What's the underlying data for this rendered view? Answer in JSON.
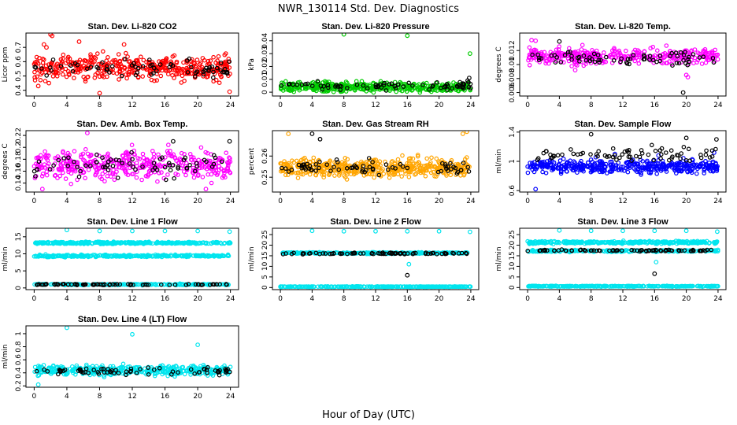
{
  "figure": {
    "title": "NWR_130114  Std. Dev. Diagnostics",
    "xlabel": "Hour of Day (UTC)"
  },
  "chart_data": [
    {
      "type": "scatter",
      "title": "Stan. Dev. Li-820 CO2",
      "ylabel": "Licor ppm",
      "xlim": [
        -1,
        25
      ],
      "ylim": [
        0.36,
        0.8
      ],
      "xticks": [
        0,
        4,
        8,
        12,
        16,
        20,
        24
      ],
      "yticks": [
        0.4,
        0.5,
        0.6,
        0.7
      ],
      "series": [
        {
          "color": "#ff0000",
          "band": {
            "center": 0.56,
            "spread": 0.07,
            "n": 420
          },
          "x": [
            0.5,
            1.5,
            2.0,
            2.2,
            1.2,
            5.5,
            8.0,
            11.0,
            23.9,
            1.8
          ],
          "y": [
            0.43,
            0.7,
            0.79,
            0.78,
            0.72,
            0.74,
            0.38,
            0.72,
            0.39,
            0.45
          ]
        },
        {
          "color": "#000000",
          "band": {
            "center": 0.55,
            "spread": 0.05,
            "n": 70
          },
          "x": [],
          "y": []
        }
      ]
    },
    {
      "type": "scatter",
      "title": "Stan. Dev. Li-820 Pressure",
      "ylabel": "kPa",
      "xlim": [
        -1,
        25
      ],
      "ylim": [
        -0.003,
        0.046
      ],
      "xticks": [
        0,
        4,
        8,
        12,
        16,
        20,
        24
      ],
      "yticks": [
        0.0,
        0.01,
        0.02,
        0.03,
        0.04
      ],
      "series": [
        {
          "color": "#00cc00",
          "band": {
            "center": 0.004,
            "spread": 0.003,
            "n": 420
          },
          "x": [
            8.0,
            16.0,
            23.9
          ],
          "y": [
            0.045,
            0.044,
            0.03
          ]
        },
        {
          "color": "#000000",
          "band": {
            "center": 0.005,
            "spread": 0.003,
            "n": 70
          },
          "x": [
            23.8,
            23.6
          ],
          "y": [
            0.011,
            0.009
          ]
        }
      ]
    },
    {
      "type": "scatter",
      "title": "Stan. Dev. Li-820 Temp.",
      "ylabel": "degrees C",
      "xlim": [
        -1,
        25
      ],
      "ylim": [
        0.0055,
        0.0145
      ],
      "xticks": [
        0,
        4,
        8,
        12,
        16,
        20,
        24
      ],
      "yticks": [
        0.006,
        0.008,
        0.01,
        0.012
      ],
      "series": [
        {
          "color": "#ff00ff",
          "band": {
            "center": 0.0112,
            "spread": 0.0009,
            "n": 360
          },
          "x": [
            20.0,
            20.2,
            6.0,
            0.5,
            1.0
          ],
          "y": [
            0.0085,
            0.0082,
            0.0092,
            0.0135,
            0.0134
          ]
        },
        {
          "color": "#000000",
          "band": {
            "center": 0.011,
            "spread": 0.0008,
            "n": 70
          },
          "x": [
            19.6,
            4.0
          ],
          "y": [
            0.006,
            0.0133
          ]
        }
      ]
    },
    {
      "type": "scatter",
      "title": "Stan. Dev. Amb. Box Temp.",
      "ylabel": "degrees C",
      "xlim": [
        -1,
        25
      ],
      "ylim": [
        0.125,
        0.228
      ],
      "xticks": [
        0,
        4,
        8,
        12,
        16,
        20,
        24
      ],
      "yticks": [
        0.14,
        0.16,
        0.18,
        0.2,
        0.22
      ],
      "series": [
        {
          "color": "#ff00ff",
          "band": {
            "center": 0.17,
            "spread": 0.02,
            "n": 420
          },
          "x": [
            6.5,
            21.0,
            1.0
          ],
          "y": [
            0.224,
            0.13,
            0.13
          ]
        },
        {
          "color": "#000000",
          "band": {
            "center": 0.17,
            "spread": 0.016,
            "n": 70
          },
          "x": [
            23.9,
            17.0
          ],
          "y": [
            0.21,
            0.21
          ]
        }
      ]
    },
    {
      "type": "scatter",
      "title": "Stan. Dev. Gas Stream RH",
      "ylabel": "percent",
      "xlim": [
        -1,
        25
      ],
      "ylim": [
        0.243,
        0.272
      ],
      "xticks": [
        0,
        4,
        8,
        12,
        16,
        20,
        24
      ],
      "yticks": [
        0.25,
        0.26
      ],
      "series": [
        {
          "color": "#ffa500",
          "band": {
            "center": 0.2545,
            "spread": 0.0035,
            "n": 480
          },
          "x": [
            23.5,
            23.0,
            1.0
          ],
          "y": [
            0.2715,
            0.2705,
            0.2705
          ]
        },
        {
          "color": "#000000",
          "band": {
            "center": 0.2545,
            "spread": 0.003,
            "n": 70
          },
          "x": [
            4.0,
            5.0
          ],
          "y": [
            0.2705,
            0.268
          ]
        }
      ]
    },
    {
      "type": "scatter",
      "title": "Stan. Dev. Sample Flow",
      "ylabel": "ml/min",
      "xlim": [
        -1,
        25
      ],
      "ylim": [
        0.58,
        1.42
      ],
      "xticks": [
        0,
        4,
        8,
        12,
        16,
        20,
        24
      ],
      "yticks": [
        0.6,
        1.0,
        1.4
      ],
      "series": [
        {
          "color": "#0000ff",
          "band": {
            "center": 0.93,
            "spread": 0.07,
            "n": 420
          },
          "x": [
            1.0,
            23.5,
            11.0,
            16.5
          ],
          "y": [
            0.62,
            1.12,
            1.1,
            1.08
          ]
        },
        {
          "color": "#000000",
          "band": {
            "center": 1.1,
            "spread": 0.09,
            "n": 70
          },
          "x": [
            8.0,
            20.0,
            23.8
          ],
          "y": [
            1.37,
            1.32,
            1.3
          ]
        }
      ]
    },
    {
      "type": "scatter",
      "title": "Stan. Dev. Line 1 Flow",
      "ylabel": "ml/min",
      "xlim": [
        -1,
        25
      ],
      "ylim": [
        -0.5,
        17.5
      ],
      "xticks": [
        0,
        4,
        8,
        12,
        16,
        20,
        24
      ],
      "yticks": [
        0,
        5,
        10,
        15
      ],
      "series": [
        {
          "color": "#00e5ee",
          "band": {
            "center": 13.2,
            "spread": 0.25,
            "n": 300
          },
          "x": [
            4.0,
            8.0,
            12.0,
            16.0,
            20.0,
            23.9
          ],
          "y": [
            17.0,
            16.7,
            16.7,
            16.7,
            16.7,
            16.5
          ]
        },
        {
          "color": "#00e5ee",
          "band": {
            "center": 9.4,
            "spread": 0.25,
            "n": 300
          },
          "x": [],
          "y": []
        },
        {
          "color": "#00e5ee",
          "band": {
            "center": 1.0,
            "spread": 0.15,
            "n": 200
          },
          "x": [],
          "y": []
        },
        {
          "color": "#000000",
          "band": {
            "center": 1.0,
            "spread": 0.12,
            "n": 75
          },
          "x": [],
          "y": []
        }
      ]
    },
    {
      "type": "scatter",
      "title": "Stan. Dev. Line 2 Flow",
      "ylabel": "ml/min",
      "xlim": [
        -1,
        25
      ],
      "ylim": [
        -1,
        28
      ],
      "xticks": [
        0,
        4,
        8,
        12,
        16,
        20,
        24
      ],
      "yticks": [
        0,
        5,
        10,
        15,
        20,
        25
      ],
      "series": [
        {
          "color": "#00e5ee",
          "band": {
            "center": 16.3,
            "spread": 0.3,
            "n": 300
          },
          "x": [
            4.0,
            8.0,
            12.0,
            16.0,
            20.0,
            23.9,
            16.2
          ],
          "y": [
            26.8,
            26.6,
            26.6,
            26.6,
            26.6,
            26.3,
            11.0
          ]
        },
        {
          "color": "#00e5ee",
          "band": {
            "center": 0.4,
            "spread": 0.1,
            "n": 300
          },
          "x": [],
          "y": []
        },
        {
          "color": "#000000",
          "band": {
            "center": 16.1,
            "spread": 0.3,
            "n": 75
          },
          "x": [
            16.0
          ],
          "y": [
            5.8
          ]
        }
      ]
    },
    {
      "type": "scatter",
      "title": "Stan. Dev. Line 3 Flow",
      "ylabel": "ml/min",
      "xlim": [
        -1,
        25
      ],
      "ylim": [
        -1,
        28
      ],
      "xticks": [
        0,
        4,
        8,
        12,
        16,
        20,
        24
      ],
      "yticks": [
        0,
        5,
        10,
        15,
        20,
        25
      ],
      "series": [
        {
          "color": "#00e5ee",
          "band": {
            "center": 21.3,
            "spread": 0.5,
            "n": 320
          },
          "x": [
            4.0,
            8.0,
            12.0,
            16.0,
            20.0,
            23.9
          ],
          "y": [
            27.0,
            26.8,
            26.8,
            26.8,
            26.8,
            26.4
          ]
        },
        {
          "color": "#00e5ee",
          "band": {
            "center": 17.3,
            "spread": 0.4,
            "n": 200
          },
          "x": [
            16.2
          ],
          "y": [
            12.0
          ]
        },
        {
          "color": "#00e5ee",
          "band": {
            "center": 0.6,
            "spread": 0.15,
            "n": 300
          },
          "x": [],
          "y": []
        },
        {
          "color": "#000000",
          "band": {
            "center": 17.5,
            "spread": 0.3,
            "n": 75
          },
          "x": [
            16.0
          ],
          "y": [
            6.5
          ]
        }
      ]
    },
    {
      "type": "scatter",
      "title": "Stan. Dev. Line 4 (LT) Flow",
      "ylabel": "ml/min",
      "xlim": [
        -1,
        25
      ],
      "ylim": [
        0.18,
        1.12
      ],
      "xticks": [
        0,
        4,
        8,
        12,
        16,
        20,
        24
      ],
      "yticks": [
        0.2,
        0.4,
        0.6,
        0.8,
        1.0
      ],
      "series": [
        {
          "color": "#00e5ee",
          "band": {
            "center": 0.44,
            "spread": 0.06,
            "n": 420
          },
          "x": [
            4.0,
            12.0,
            20.0,
            0.5
          ],
          "y": [
            1.09,
            0.99,
            0.83,
            0.22
          ]
        },
        {
          "color": "#000000",
          "band": {
            "center": 0.43,
            "spread": 0.05,
            "n": 70
          },
          "x": [],
          "y": []
        }
      ]
    }
  ]
}
